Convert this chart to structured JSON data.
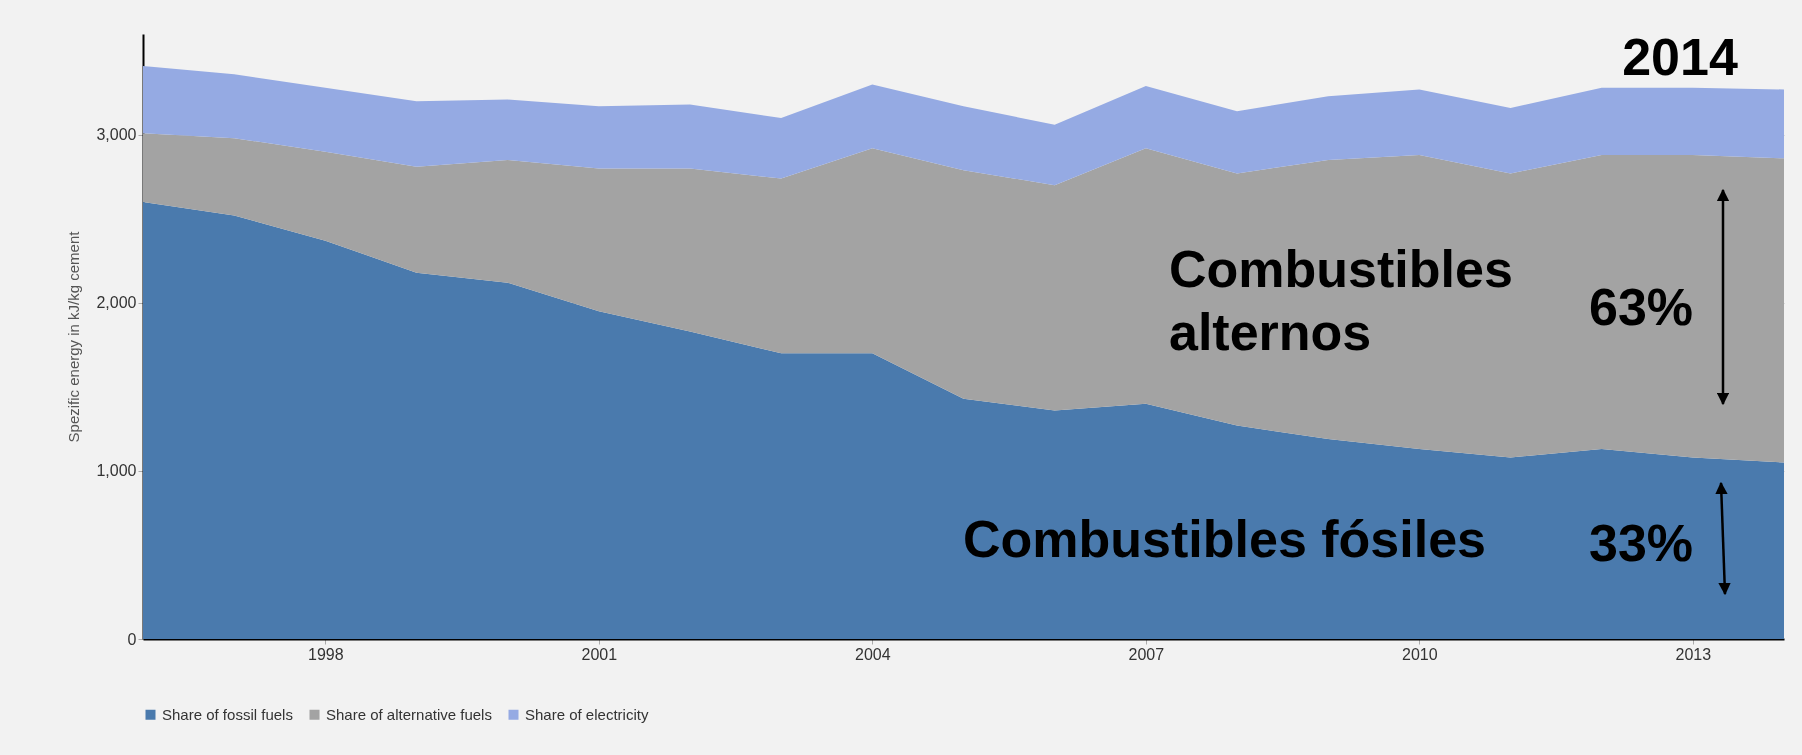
{
  "chart_data": {
    "type": "area",
    "stacked": true,
    "x": [
      1996,
      1997,
      1998,
      1999,
      2000,
      2001,
      2002,
      2003,
      2004,
      2005,
      2006,
      2007,
      2008,
      2009,
      2010,
      2011,
      2012,
      2013,
      2014
    ],
    "series": [
      {
        "name": "Share of fossil fuels",
        "color": "#4a7aad",
        "values": [
          2600,
          2520,
          2370,
          2180,
          2120,
          1950,
          1830,
          1700,
          1700,
          1430,
          1360,
          1400,
          1270,
          1190,
          1130,
          1080,
          1130,
          1080,
          1050
        ]
      },
      {
        "name": "Share of alternative fuels",
        "color": "#a3a3a3",
        "values": [
          410,
          460,
          530,
          630,
          730,
          850,
          970,
          1040,
          1220,
          1360,
          1340,
          1520,
          1500,
          1660,
          1750,
          1690,
          1750,
          1800,
          1810
        ]
      },
      {
        "name": "Share of electricity",
        "color": "#95aae3",
        "values": [
          400,
          380,
          380,
          390,
          360,
          370,
          380,
          360,
          380,
          380,
          360,
          370,
          370,
          380,
          390,
          390,
          400,
          400,
          410
        ]
      }
    ],
    "ylabel": "Spezific energy in kJ/kg cement",
    "xlim": [
      1996,
      2014
    ],
    "xticks": [
      1998,
      2001,
      2004,
      2007,
      2010,
      2013
    ],
    "ylim": [
      0,
      3600
    ],
    "yticks": [
      0,
      {
        "value": 1000,
        "label": "1,000"
      },
      {
        "value": 2000,
        "label": "2,000"
      },
      {
        "value": 3000,
        "label": "3,000"
      }
    ],
    "grid": "y",
    "legend": "bottom",
    "annotations": [
      "2014",
      "Combustibles alternos",
      "Combustibles fósiles",
      "63%",
      "33%"
    ]
  }
}
